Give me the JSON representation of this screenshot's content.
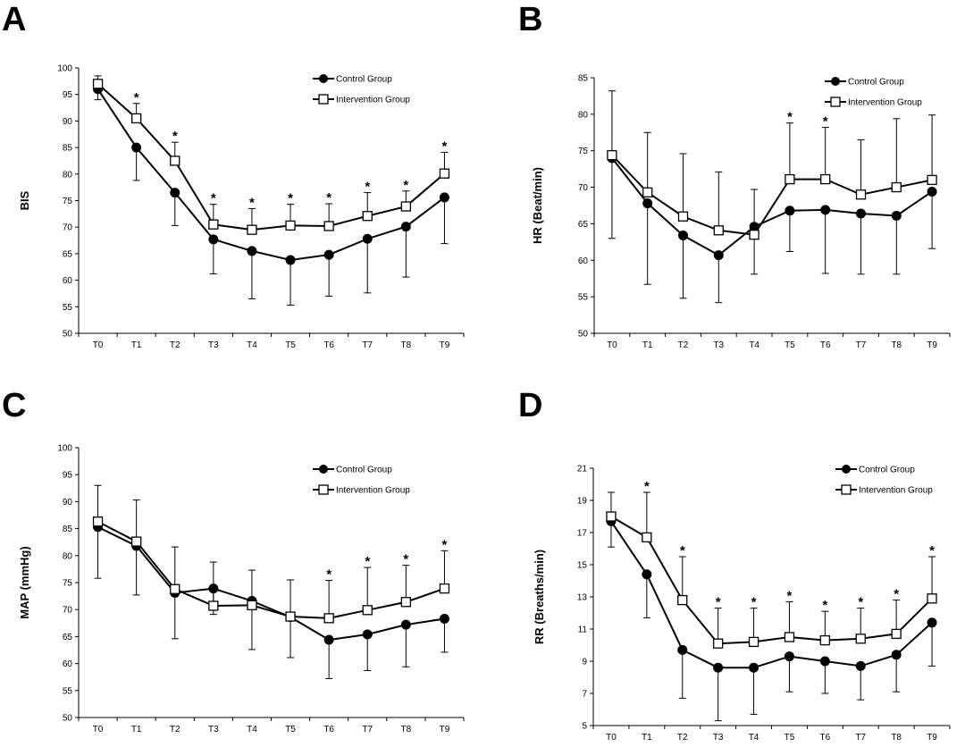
{
  "colors": {
    "line": "#000000",
    "control_marker": "#000000",
    "intervention_marker": "#ffffff"
  },
  "chart_data": [
    {
      "panel": "A",
      "type": "line",
      "categories": [
        "T0",
        "T1",
        "T2",
        "T3",
        "T4",
        "T5",
        "T6",
        "T7",
        "T8",
        "T9"
      ],
      "ylabel": "BIS",
      "xlabel": "",
      "ylim": [
        50,
        100
      ],
      "yticks": [
        50,
        55,
        60,
        65,
        70,
        75,
        80,
        85,
        90,
        95,
        100
      ],
      "legend": "top-right",
      "significance_marker": "*",
      "significant": [
        false,
        true,
        true,
        true,
        true,
        true,
        true,
        true,
        true,
        true
      ],
      "series": [
        {
          "name": "Control Group",
          "marker": "filled-circle",
          "values": [
            96.0,
            85.0,
            76.5,
            67.7,
            65.5,
            63.8,
            64.8,
            67.8,
            70.1,
            75.6
          ],
          "sd": [
            2.0,
            6.2,
            6.2,
            6.5,
            9.0,
            8.5,
            7.8,
            10.2,
            9.5,
            8.7
          ]
        },
        {
          "name": "Intervention Group",
          "marker": "open-square",
          "values": [
            97.0,
            90.5,
            82.5,
            70.5,
            69.5,
            70.3,
            70.2,
            72.1,
            73.9,
            80.1
          ],
          "sd": [
            1.5,
            2.8,
            3.5,
            3.8,
            4.0,
            4.0,
            4.2,
            4.4,
            2.9,
            4.0
          ]
        }
      ]
    },
    {
      "panel": "B",
      "type": "line",
      "categories": [
        "T0",
        "T1",
        "T2",
        "T3",
        "T4",
        "T5",
        "T6",
        "T7",
        "T8",
        "T9"
      ],
      "ylabel": "HR (Beat/min)",
      "xlabel": "",
      "ylim": [
        50,
        85
      ],
      "yticks": [
        50,
        55,
        60,
        65,
        70,
        75,
        80,
        85
      ],
      "legend": "top-right",
      "significance_marker": "*",
      "significant": [
        false,
        false,
        false,
        false,
        false,
        true,
        true,
        false,
        false,
        false
      ],
      "series": [
        {
          "name": "Control Group",
          "marker": "filled-circle",
          "values": [
            74.0,
            67.8,
            63.4,
            60.7,
            64.6,
            66.8,
            66.9,
            66.4,
            66.1,
            69.4
          ],
          "sd": [
            11.0,
            11.1,
            8.6,
            6.5,
            6.5,
            5.6,
            8.7,
            8.3,
            8.0,
            7.8
          ]
        },
        {
          "name": "Intervention Group",
          "marker": "open-square",
          "values": [
            74.4,
            69.3,
            66.0,
            64.1,
            63.5,
            71.1,
            71.1,
            69.0,
            70.0,
            71.0
          ],
          "sd": [
            8.8,
            8.2,
            8.6,
            8.0,
            6.2,
            7.7,
            7.1,
            7.5,
            9.4,
            8.9
          ]
        }
      ]
    },
    {
      "panel": "C",
      "type": "line",
      "categories": [
        "T0",
        "T1",
        "T2",
        "T3",
        "T4",
        "T5",
        "T6",
        "T7",
        "T8",
        "T9"
      ],
      "ylabel": "MAP (mmHg)",
      "xlabel": "",
      "ylim": [
        50,
        100
      ],
      "yticks": [
        50,
        55,
        60,
        65,
        70,
        75,
        80,
        85,
        90,
        95,
        100
      ],
      "legend": "top-right",
      "significance_marker": "*",
      "significant": [
        false,
        false,
        false,
        false,
        false,
        false,
        true,
        true,
        true,
        true
      ],
      "series": [
        {
          "name": "Control Group",
          "marker": "filled-circle",
          "values": [
            85.3,
            81.8,
            73.1,
            73.9,
            71.6,
            68.6,
            64.4,
            65.4,
            67.2,
            68.3
          ],
          "sd": [
            9.5,
            9.1,
            8.5,
            4.8,
            9.0,
            7.5,
            7.2,
            6.7,
            7.8,
            6.2
          ]
        },
        {
          "name": "Intervention Group",
          "marker": "open-square",
          "values": [
            86.3,
            82.6,
            73.8,
            70.7,
            70.8,
            68.7,
            68.4,
            69.9,
            71.4,
            73.9
          ],
          "sd": [
            6.7,
            7.7,
            7.8,
            8.1,
            6.5,
            6.8,
            7.0,
            7.9,
            6.8,
            7.0
          ]
        }
      ]
    },
    {
      "panel": "D",
      "type": "line",
      "categories": [
        "T0",
        "T1",
        "T2",
        "T3",
        "T4",
        "T5",
        "T6",
        "T7",
        "T8",
        "T9"
      ],
      "ylabel": "RR (Breaths/min)",
      "xlabel": "",
      "ylim": [
        5,
        21
      ],
      "yticks": [
        5,
        7,
        9,
        11,
        13,
        15,
        17,
        19,
        21
      ],
      "legend": "top-right",
      "significance_marker": "*",
      "significant": [
        false,
        true,
        true,
        true,
        true,
        true,
        true,
        true,
        true,
        true
      ],
      "series": [
        {
          "name": "Control Group",
          "marker": "filled-circle",
          "values": [
            17.7,
            14.4,
            9.7,
            8.6,
            8.6,
            9.3,
            9.0,
            8.7,
            9.4,
            11.4
          ],
          "sd": [
            1.6,
            2.7,
            3.0,
            3.3,
            2.9,
            2.2,
            2.0,
            2.1,
            2.3,
            2.7
          ]
        },
        {
          "name": "Intervention Group",
          "marker": "open-square",
          "values": [
            18.0,
            16.7,
            12.8,
            10.1,
            10.2,
            10.5,
            10.3,
            10.4,
            10.7,
            12.9
          ],
          "sd": [
            1.5,
            2.8,
            2.7,
            2.2,
            2.1,
            2.2,
            1.8,
            1.9,
            2.1,
            2.6
          ]
        }
      ]
    }
  ]
}
